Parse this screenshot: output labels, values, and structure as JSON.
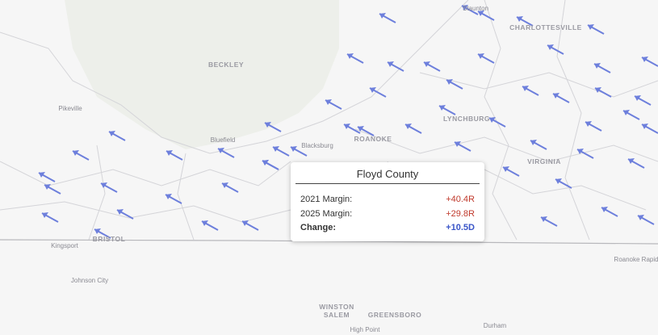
{
  "map": {
    "labels": [
      "BECKLEY",
      "Pikeville",
      "Bluefield",
      "Blacksburg",
      "ROANOKE",
      "LYNCHBURG",
      "CHARLOTTESVILLE",
      "Staunton",
      "VIRGINIA",
      "BRISTOL",
      "Kingsport",
      "Johnson City",
      "WINSTON",
      "SALEM",
      "GREENSBORO",
      "High Point",
      "Durham",
      "Roanoke Rapids"
    ]
  },
  "tooltip": {
    "title": "Floyd County",
    "rows": [
      {
        "label": "2021 Margin:",
        "value": "+40.4R"
      },
      {
        "label": "2025 Margin:",
        "value": "+29.8R"
      },
      {
        "label": "Change:",
        "value": "+10.5D"
      }
    ]
  }
}
